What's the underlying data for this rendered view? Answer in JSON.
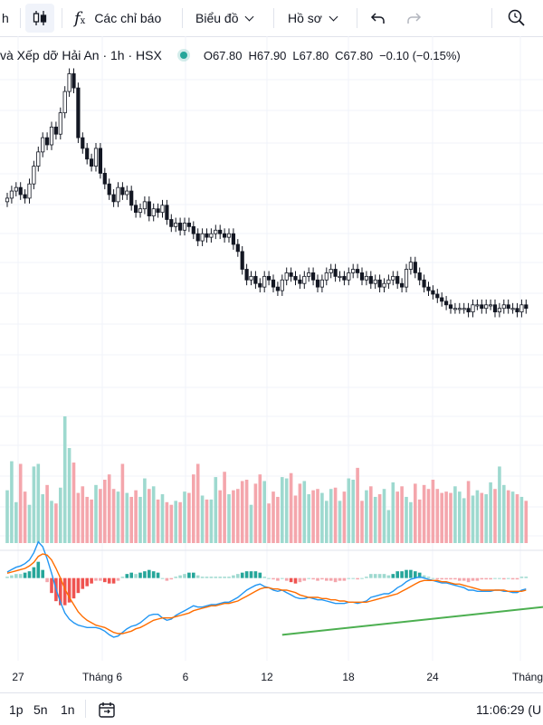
{
  "toolbar": {
    "left_fragment": "h",
    "indicators_label": "Các chỉ báo",
    "chart_label": "Biểu đồ",
    "profile_label": "Hồ sơ"
  },
  "legend": {
    "title": "và Xếp dỡ Hải An · 1h · HSX",
    "open": "O67.80",
    "high": "H67.90",
    "low": "L67.80",
    "close": "C67.80",
    "change": "−0.10 (−0.15%)"
  },
  "colors": {
    "up": "#26a69a",
    "down": "#ef5350",
    "candle": "#131722",
    "vol_up": "#9ed9cf",
    "vol_down": "#f4a6ac",
    "macd": "#2196f3",
    "signal": "#ff6d00",
    "trendline": "#4caf50",
    "grid": "#f0f3fa"
  },
  "chart_data": {
    "type": "candlestick",
    "x_ticks": [
      "27",
      "Tháng 6",
      "6",
      "12",
      "18",
      "24",
      "Tháng"
    ],
    "close_series": [
      68.9,
      69.1,
      69.2,
      69.0,
      68.9,
      69.3,
      69.8,
      70.2,
      70.6,
      70.4,
      70.9,
      70.7,
      71.3,
      71.9,
      72.4,
      72.0,
      70.6,
      70.3,
      70.0,
      69.8,
      70.3,
      69.6,
      69.3,
      69.0,
      68.8,
      69.2,
      69.0,
      69.1,
      68.7,
      68.5,
      68.6,
      68.8,
      68.4,
      68.6,
      68.5,
      68.7,
      68.3,
      68.1,
      68.2,
      68.0,
      68.2,
      68.1,
      67.9,
      67.7,
      67.9,
      67.8,
      67.9,
      68.0,
      67.9,
      67.8,
      67.9,
      67.6,
      67.4,
      66.9,
      66.6,
      66.7,
      66.5,
      66.4,
      66.7,
      66.6,
      66.4,
      66.3,
      66.6,
      66.8,
      66.7,
      66.6,
      66.5,
      66.7,
      66.8,
      66.6,
      66.4,
      66.6,
      66.8,
      66.9,
      66.7,
      66.7,
      66.6,
      66.8,
      66.9,
      66.8,
      66.6,
      66.7,
      66.5,
      66.6,
      66.4,
      66.5,
      66.6,
      66.7,
      66.5,
      66.4,
      66.9,
      67.1,
      66.8,
      66.6,
      66.4,
      66.3,
      66.2,
      66.1,
      66.0,
      65.9,
      65.8,
      65.8,
      65.8,
      65.8,
      65.7,
      65.9,
      65.9,
      65.8,
      65.9,
      65.9,
      65.7,
      65.8,
      65.9,
      65.8,
      65.8,
      65.7,
      65.9,
      65.8
    ],
    "volume_series": [
      200,
      310,
      155,
      300,
      195,
      145,
      290,
      300,
      185,
      220,
      160,
      150,
      210,
      480,
      360,
      305,
      190,
      215,
      175,
      165,
      220,
      205,
      240,
      260,
      205,
      195,
      300,
      190,
      175,
      200,
      175,
      245,
      205,
      215,
      165,
      185,
      155,
      145,
      160,
      155,
      195,
      190,
      260,
      300,
      180,
      165,
      165,
      250,
      200,
      270,
      185,
      200,
      205,
      235,
      240,
      145,
      225,
      260,
      235,
      150,
      195,
      175,
      250,
      245,
      265,
      180,
      225,
      235,
      185,
      200,
      205,
      190,
      160,
      205,
      210,
      160,
      195,
      245,
      240,
      285,
      160,
      200,
      215,
      175,
      185,
      205,
      125,
      230,
      195,
      215,
      175,
      155,
      225,
      165,
      220,
      205,
      240,
      205,
      190,
      195,
      190,
      215,
      195,
      170,
      235,
      180,
      200,
      190,
      185,
      230,
      205,
      290,
      220,
      200,
      195,
      185,
      175,
      160
    ],
    "macd_series": [
      0.05,
      0.07,
      0.09,
      0.1,
      0.12,
      0.15,
      0.21,
      0.3,
      0.26,
      0.16,
      0.04,
      -0.09,
      -0.2,
      -0.29,
      -0.34,
      -0.37,
      -0.39,
      -0.4,
      -0.41,
      -0.41,
      -0.41,
      -0.42,
      -0.44,
      -0.47,
      -0.49,
      -0.48,
      -0.45,
      -0.42,
      -0.4,
      -0.39,
      -0.37,
      -0.34,
      -0.31,
      -0.3,
      -0.3,
      -0.33,
      -0.35,
      -0.34,
      -0.31,
      -0.29,
      -0.27,
      -0.25,
      -0.23,
      -0.24,
      -0.24,
      -0.23,
      -0.22,
      -0.22,
      -0.21,
      -0.2,
      -0.2,
      -0.18,
      -0.16,
      -0.13,
      -0.1,
      -0.08,
      -0.06,
      -0.05,
      -0.07,
      -0.08,
      -0.1,
      -0.11,
      -0.1,
      -0.12,
      -0.14,
      -0.16,
      -0.17,
      -0.17,
      -0.16,
      -0.17,
      -0.18,
      -0.18,
      -0.19,
      -0.2,
      -0.21,
      -0.21,
      -0.21,
      -0.2,
      -0.2,
      -0.21,
      -0.2,
      -0.19,
      -0.16,
      -0.15,
      -0.14,
      -0.13,
      -0.13,
      -0.11,
      -0.08,
      -0.06,
      -0.03,
      -0.01,
      0.0,
      0.01,
      0.0,
      -0.01,
      -0.02,
      -0.03,
      -0.04,
      -0.04,
      -0.05,
      -0.06,
      -0.07,
      -0.08,
      -0.1,
      -0.1,
      -0.11,
      -0.11,
      -0.11,
      -0.11,
      -0.1,
      -0.1,
      -0.11,
      -0.11,
      -0.12,
      -0.12,
      -0.1,
      -0.09
    ],
    "signal_series": [
      0.04,
      0.05,
      0.06,
      0.07,
      0.08,
      0.1,
      0.13,
      0.18,
      0.2,
      0.19,
      0.15,
      0.08,
      0.0,
      -0.09,
      -0.16,
      -0.22,
      -0.28,
      -0.32,
      -0.35,
      -0.37,
      -0.39,
      -0.4,
      -0.41,
      -0.43,
      -0.45,
      -0.46,
      -0.46,
      -0.45,
      -0.44,
      -0.42,
      -0.41,
      -0.39,
      -0.37,
      -0.35,
      -0.34,
      -0.33,
      -0.33,
      -0.33,
      -0.32,
      -0.31,
      -0.3,
      -0.29,
      -0.27,
      -0.26,
      -0.25,
      -0.24,
      -0.23,
      -0.23,
      -0.22,
      -0.21,
      -0.21,
      -0.2,
      -0.19,
      -0.17,
      -0.15,
      -0.13,
      -0.11,
      -0.09,
      -0.08,
      -0.08,
      -0.09,
      -0.09,
      -0.1,
      -0.1,
      -0.11,
      -0.12,
      -0.14,
      -0.15,
      -0.16,
      -0.16,
      -0.16,
      -0.17,
      -0.17,
      -0.18,
      -0.18,
      -0.19,
      -0.19,
      -0.2,
      -0.2,
      -0.2,
      -0.2,
      -0.2,
      -0.19,
      -0.18,
      -0.17,
      -0.16,
      -0.15,
      -0.14,
      -0.13,
      -0.11,
      -0.09,
      -0.07,
      -0.05,
      -0.03,
      -0.02,
      -0.02,
      -0.02,
      -0.02,
      -0.03,
      -0.03,
      -0.04,
      -0.05,
      -0.05,
      -0.06,
      -0.07,
      -0.08,
      -0.09,
      -0.1,
      -0.1,
      -0.1,
      -0.1,
      -0.1,
      -0.1,
      -0.11,
      -0.11,
      -0.11,
      -0.11,
      -0.1
    ],
    "price_range": [
      64.8,
      73.2
    ],
    "macd_range": [
      -0.55,
      0.35
    ]
  },
  "bottombar": {
    "ranges": [
      "1p",
      "5n",
      "1n"
    ],
    "time": "11:06:29 (U"
  }
}
